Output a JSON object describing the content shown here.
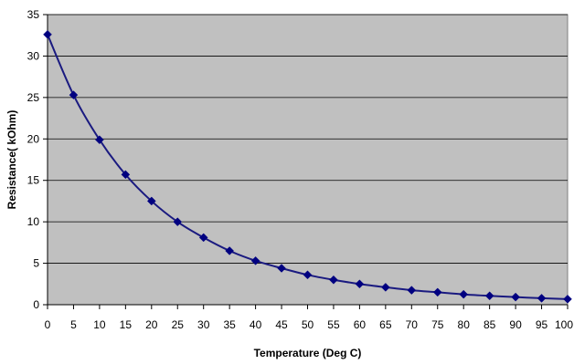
{
  "chart_data": {
    "type": "line",
    "title": "",
    "xlabel": "Temperature (Deg C)",
    "ylabel": "Resistance( kOhm)",
    "xlim": [
      0,
      100
    ],
    "ylim": [
      0,
      35
    ],
    "x_ticks": [
      "0",
      "5",
      "10",
      "15",
      "20",
      "25",
      "30",
      "35",
      "40",
      "45",
      "50",
      "55",
      "60",
      "65",
      "70",
      "75",
      "80",
      "85",
      "90",
      "95",
      "100"
    ],
    "y_ticks": [
      "0",
      "5",
      "10",
      "15",
      "20",
      "25",
      "30",
      "35"
    ],
    "grid": true,
    "legend": "none",
    "series": [
      {
        "x": [
          0,
          5,
          10,
          15,
          20,
          25,
          30,
          35,
          40,
          45,
          50,
          55,
          60,
          65,
          70,
          75,
          80,
          85,
          90,
          95,
          100
        ],
        "y": [
          32.6,
          25.3,
          19.9,
          15.7,
          12.5,
          10.0,
          8.1,
          6.5,
          5.3,
          4.4,
          3.6,
          3.0,
          2.5,
          2.1,
          1.75,
          1.5,
          1.25,
          1.07,
          0.92,
          0.78,
          0.68
        ]
      }
    ],
    "colors": {
      "plot_background": "#c0c0c0",
      "gridline": "#000000",
      "series_line": "#1a1a80",
      "marker": "#000080",
      "axis": "#000000"
    }
  }
}
